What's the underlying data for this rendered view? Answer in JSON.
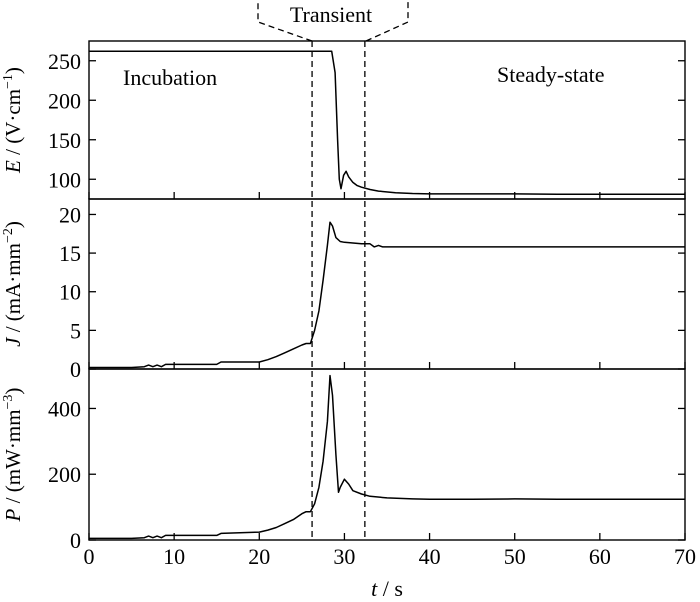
{
  "chart_data": [
    {
      "type": "line",
      "ylabel": {
        "symbol": "E",
        "unit": " / (V·cm",
        "exp": "−1",
        "close": ")"
      },
      "ylim": [
        75,
        275
      ],
      "yticks": [
        "100",
        "150",
        "200",
        "250"
      ],
      "yticks_values": [
        100,
        150,
        200,
        250
      ],
      "series": [
        {
          "x": [
            0,
            5,
            10,
            15,
            20,
            25,
            28,
            28.5,
            28.9,
            29.2,
            29.4,
            29.6,
            29.9,
            30.2,
            30.5,
            31,
            31.5,
            32,
            33,
            34,
            36,
            38,
            40,
            45,
            50,
            55,
            60,
            65,
            70
          ],
          "y": [
            262,
            262,
            262,
            262,
            262,
            262,
            262,
            262,
            235,
            150,
            100,
            88,
            105,
            110,
            103,
            96,
            92,
            90,
            87,
            85,
            83,
            82,
            81.5,
            81.5,
            81.5,
            81,
            81,
            81,
            81
          ]
        }
      ]
    },
    {
      "type": "line",
      "ylabel": {
        "symbol": "J",
        "unit": " / (mA·mm",
        "exp": "−2",
        "close": ")"
      },
      "ylim": [
        0,
        22
      ],
      "yticks": [
        "0",
        "5",
        "10",
        "15",
        "20"
      ],
      "yticks_values": [
        0,
        5,
        10,
        15,
        20
      ],
      "series": [
        {
          "x": [
            0,
            5,
            6.5,
            7,
            7.5,
            8,
            8.5,
            9,
            10,
            15,
            15.5,
            20,
            21,
            22,
            23,
            24,
            25,
            25.5,
            26,
            26.5,
            27,
            27.5,
            28,
            28.3,
            28.6,
            29,
            29.5,
            30,
            31,
            32,
            33,
            33.5,
            34,
            34.5,
            35,
            40,
            45,
            50,
            55,
            60,
            65,
            70
          ],
          "y": [
            0.2,
            0.2,
            0.3,
            0.5,
            0.3,
            0.5,
            0.3,
            0.6,
            0.6,
            0.6,
            0.9,
            0.9,
            1.2,
            1.6,
            2.1,
            2.6,
            3.1,
            3.3,
            3.3,
            5.0,
            7.5,
            11.5,
            16,
            19,
            18.5,
            17,
            16.5,
            16.4,
            16.3,
            16.2,
            16.2,
            15.8,
            16.0,
            15.8,
            15.8,
            15.8,
            15.8,
            15.8,
            15.8,
            15.8,
            15.8,
            15.8
          ]
        }
      ]
    },
    {
      "type": "line",
      "ylabel": {
        "symbol": "P",
        "unit": " / (mW·mm",
        "exp": "−3",
        "close": ")"
      },
      "ylim": [
        0,
        520
      ],
      "yticks": [
        "0",
        "200",
        "400"
      ],
      "yticks_values": [
        0,
        200,
        400
      ],
      "xlabel": {
        "symbol": "t",
        "unit": " / s"
      },
      "xlim": [
        0,
        70
      ],
      "xticks": [
        "0",
        "10",
        "20",
        "30",
        "40",
        "50",
        "60",
        "70"
      ],
      "xticks_values": [
        0,
        10,
        20,
        30,
        40,
        50,
        60,
        70
      ],
      "series": [
        {
          "x": [
            0,
            5,
            6.5,
            7,
            7.5,
            8,
            8.5,
            9,
            10,
            15,
            15.5,
            20,
            21,
            22,
            23,
            24,
            25,
            25.5,
            26,
            26.5,
            27,
            27.5,
            28,
            28.3,
            28.6,
            29,
            29.3,
            29.5,
            30,
            30.5,
            31,
            32,
            33,
            35,
            38,
            40,
            45,
            50,
            55,
            60,
            65,
            70
          ],
          "y": [
            5,
            5,
            7,
            12,
            7,
            12,
            7,
            14,
            14,
            14,
            20,
            24,
            30,
            38,
            50,
            62,
            80,
            86,
            86,
            110,
            160,
            240,
            360,
            500,
            440,
            260,
            145,
            160,
            185,
            170,
            150,
            140,
            133,
            128,
            125,
            124,
            124,
            125,
            124,
            124,
            124,
            124
          ]
        }
      ]
    }
  ],
  "annotations": {
    "incubation": "Incubation",
    "transient": "Transient",
    "steady_state": "Steady-state",
    "dashed_lines_x": [
      26.2,
      32.4
    ]
  }
}
